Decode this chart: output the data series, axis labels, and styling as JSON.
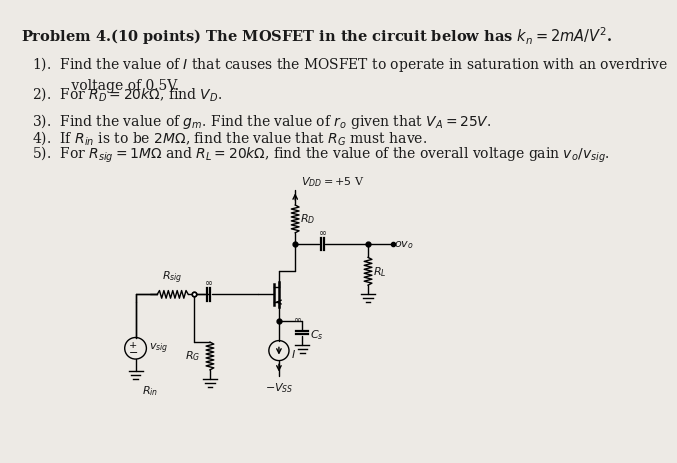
{
  "background_color": "#edeae5",
  "text_color": "#1a1a1a",
  "title": "Problem 4.(10 points) The MOSFET in the circuit below has $k_n = 2mA/V^2$.",
  "items": [
    "1).  Find the value of $I$ that causes the MOSFET to operate in saturation with an overdrive\n         voltage of 0.5V.",
    "2).  For $R_D = 20k\\Omega$, find $V_D$.",
    "3).  Find the value of $g_m$. Find the value of $r_o$ given that $V_A = 25V$.",
    "4).  If $R_{in}$ is to be $2M\\Omega$, find the value that $R_G$ must have.",
    "5).  For $R_{sig} = 1M\\Omega$ and $R_L = 20k\\Omega$, find the value of the overall voltage gain $v_o/v_{sig}$."
  ],
  "item_y": [
    58,
    98,
    133,
    155,
    175
  ],
  "font_size_title": 10.5,
  "font_size_items": 10.0,
  "circuit": {
    "vdd_label": "$V_{DD}=+5$ V",
    "rd_label": "$R_D$",
    "rsig_label": "$R_{sig}$",
    "rg_label": "$R_G$",
    "rl_label": "$R_L$",
    "cs_label": "$C_s$",
    "i_label": "$I$",
    "vsig_label": "$v_{sig}$",
    "rin_label": "$R_{in}$",
    "vss_label": "$-V_{SS}$",
    "vo_label": "$ov_o$",
    "inf_label": "$\\infty$"
  }
}
